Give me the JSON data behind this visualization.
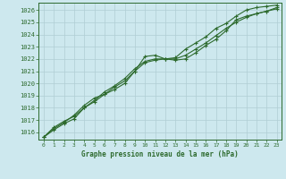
{
  "title": "Graphe pression niveau de la mer (hPa)",
  "background_color": "#cde8ee",
  "grid_color": "#b0cdd4",
  "line_color": "#2d6a2d",
  "xlim": [
    -0.5,
    23.5
  ],
  "ylim": [
    1015.4,
    1026.6
  ],
  "yticks": [
    1016,
    1017,
    1018,
    1019,
    1020,
    1021,
    1022,
    1023,
    1024,
    1025,
    1026
  ],
  "xticks": [
    0,
    1,
    2,
    3,
    4,
    5,
    6,
    7,
    8,
    9,
    10,
    11,
    12,
    13,
    14,
    15,
    16,
    17,
    18,
    19,
    20,
    21,
    22,
    23
  ],
  "line1_x": [
    0,
    1,
    2,
    3,
    4,
    5,
    6,
    7,
    8,
    9,
    10,
    11,
    12,
    13,
    14,
    15,
    16,
    17,
    18,
    19,
    20,
    21,
    22,
    23
  ],
  "line1_y": [
    1015.6,
    1016.4,
    1016.9,
    1017.3,
    1018.0,
    1018.5,
    1019.1,
    1019.7,
    1020.2,
    1021.0,
    1022.2,
    1022.3,
    1022.0,
    1021.9,
    1022.0,
    1022.5,
    1023.1,
    1023.6,
    1024.3,
    1025.2,
    1025.5,
    1025.7,
    1025.9,
    1026.2
  ],
  "line2_x": [
    0,
    1,
    2,
    3,
    4,
    5,
    6,
    7,
    8,
    9,
    10,
    11,
    12,
    13,
    14,
    15,
    16,
    17,
    18,
    19,
    20,
    21,
    22,
    23
  ],
  "line2_y": [
    1015.6,
    1016.2,
    1016.7,
    1017.1,
    1018.0,
    1018.6,
    1019.3,
    1019.8,
    1020.4,
    1021.2,
    1021.8,
    1022.0,
    1022.0,
    1022.0,
    1022.3,
    1022.8,
    1023.3,
    1023.9,
    1024.5,
    1025.0,
    1025.4,
    1025.7,
    1025.9,
    1026.1
  ],
  "line3_x": [
    0,
    1,
    2,
    3,
    4,
    5,
    6,
    7,
    8,
    9,
    10,
    11,
    12,
    13,
    14,
    15,
    16,
    17,
    18,
    19,
    20,
    21,
    22,
    23
  ],
  "line3_y": [
    1015.6,
    1016.3,
    1016.8,
    1017.4,
    1018.2,
    1018.8,
    1019.1,
    1019.5,
    1020.0,
    1021.0,
    1021.7,
    1021.9,
    1022.0,
    1022.1,
    1022.8,
    1023.3,
    1023.8,
    1024.5,
    1024.9,
    1025.5,
    1026.0,
    1026.2,
    1026.3,
    1026.4
  ]
}
